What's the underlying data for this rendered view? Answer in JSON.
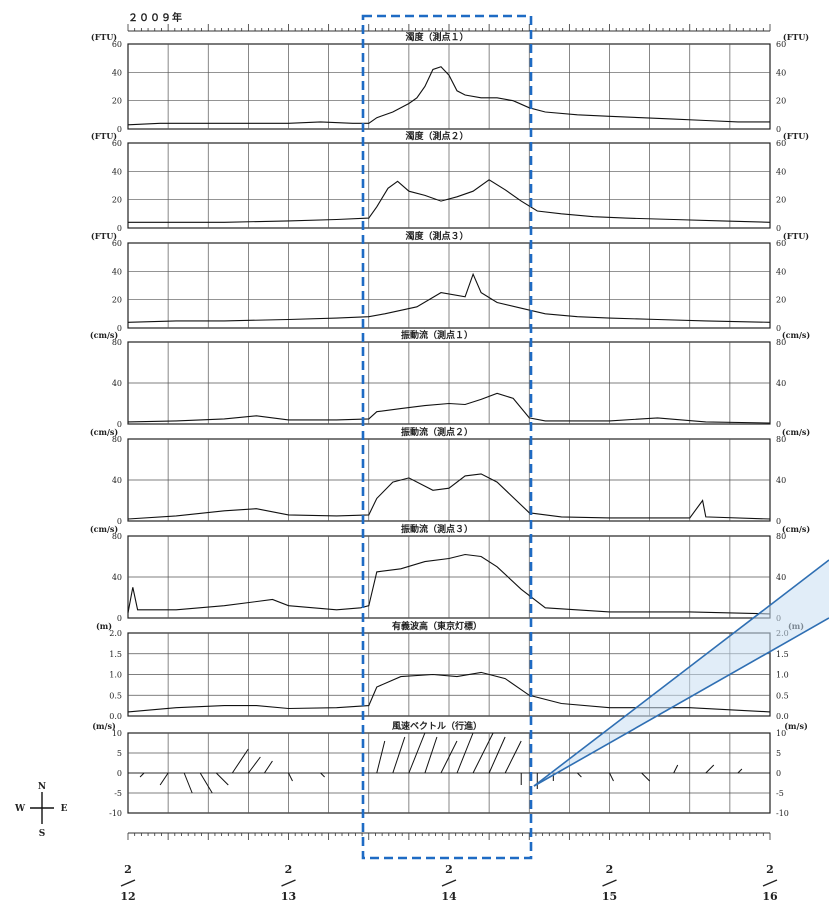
{
  "year_label": "２００９年",
  "chart_data": {
    "type": "line",
    "x_domain": [
      "2/12",
      "2/16"
    ],
    "x_labels": [
      "2/12",
      "2/13",
      "2/14",
      "2/15",
      "2/16"
    ],
    "highlight_range": [
      "2/13 12:00",
      "2/14 12:00"
    ],
    "panels": [
      {
        "title": "濁度（測点１）",
        "unit": "(FTU)",
        "ylim": [
          0,
          60
        ],
        "yticks": [
          "0",
          "20",
          "40",
          "60"
        ],
        "points": [
          [
            0,
            3
          ],
          [
            0.2,
            4
          ],
          [
            0.5,
            4
          ],
          [
            0.8,
            4
          ],
          [
            1,
            4
          ],
          [
            1.2,
            5
          ],
          [
            1.4,
            4
          ],
          [
            1.5,
            4
          ],
          [
            1.55,
            8
          ],
          [
            1.65,
            12
          ],
          [
            1.75,
            18
          ],
          [
            1.8,
            22
          ],
          [
            1.85,
            30
          ],
          [
            1.9,
            42
          ],
          [
            1.95,
            44
          ],
          [
            2.0,
            38
          ],
          [
            2.05,
            27
          ],
          [
            2.1,
            24
          ],
          [
            2.2,
            22
          ],
          [
            2.3,
            22
          ],
          [
            2.4,
            20
          ],
          [
            2.5,
            15
          ],
          [
            2.6,
            12
          ],
          [
            2.8,
            10
          ],
          [
            3,
            9
          ],
          [
            3.2,
            8
          ],
          [
            3.4,
            7
          ],
          [
            3.6,
            6
          ],
          [
            3.8,
            5
          ],
          [
            4,
            5
          ]
        ]
      },
      {
        "title": "濁度（測点２）",
        "unit": "(FTU)",
        "ylim": [
          0,
          60
        ],
        "yticks": [
          "0",
          "20",
          "40",
          "60"
        ],
        "points": [
          [
            0,
            4
          ],
          [
            0.3,
            4
          ],
          [
            0.6,
            4
          ],
          [
            1,
            5
          ],
          [
            1.3,
            6
          ],
          [
            1.5,
            7
          ],
          [
            1.55,
            15
          ],
          [
            1.62,
            28
          ],
          [
            1.68,
            33
          ],
          [
            1.75,
            26
          ],
          [
            1.85,
            23
          ],
          [
            1.95,
            19
          ],
          [
            2.05,
            22
          ],
          [
            2.15,
            26
          ],
          [
            2.25,
            34
          ],
          [
            2.35,
            27
          ],
          [
            2.45,
            19
          ],
          [
            2.55,
            12
          ],
          [
            2.7,
            10
          ],
          [
            2.9,
            8
          ],
          [
            3.1,
            7
          ],
          [
            3.4,
            6
          ],
          [
            3.7,
            5
          ],
          [
            4,
            4
          ]
        ]
      },
      {
        "title": "濁度（測点３）",
        "unit": "(FTU)",
        "ylim": [
          0,
          60
        ],
        "yticks": [
          "0",
          "20",
          "40",
          "60"
        ],
        "points": [
          [
            0,
            4
          ],
          [
            0.3,
            5
          ],
          [
            0.6,
            5
          ],
          [
            1,
            6
          ],
          [
            1.3,
            7
          ],
          [
            1.5,
            8
          ],
          [
            1.6,
            10
          ],
          [
            1.8,
            15
          ],
          [
            1.95,
            25
          ],
          [
            2.1,
            22
          ],
          [
            2.15,
            38
          ],
          [
            2.2,
            25
          ],
          [
            2.3,
            18
          ],
          [
            2.45,
            14
          ],
          [
            2.6,
            10
          ],
          [
            2.8,
            8
          ],
          [
            3.0,
            7
          ],
          [
            3.3,
            6
          ],
          [
            3.6,
            5
          ],
          [
            4,
            4
          ]
        ]
      },
      {
        "title": "振動流（測点１）",
        "unit": "(cm/s)",
        "ylim": [
          0,
          80
        ],
        "yticks": [
          "0",
          "40",
          "80"
        ],
        "points": [
          [
            0,
            2
          ],
          [
            0.3,
            3
          ],
          [
            0.6,
            5
          ],
          [
            0.8,
            8
          ],
          [
            1,
            4
          ],
          [
            1.3,
            4
          ],
          [
            1.5,
            5
          ],
          [
            1.55,
            12
          ],
          [
            1.7,
            15
          ],
          [
            1.85,
            18
          ],
          [
            2,
            20
          ],
          [
            2.1,
            19
          ],
          [
            2.2,
            24
          ],
          [
            2.3,
            30
          ],
          [
            2.4,
            25
          ],
          [
            2.5,
            6
          ],
          [
            2.6,
            3
          ],
          [
            3,
            3
          ],
          [
            3.3,
            6
          ],
          [
            3.6,
            2
          ],
          [
            4,
            1
          ]
        ]
      },
      {
        "title": "振動流（測点２）",
        "unit": "(cm/s)",
        "ylim": [
          0,
          80
        ],
        "yticks": [
          "0",
          "40",
          "80"
        ],
        "points": [
          [
            0,
            2
          ],
          [
            0.3,
            5
          ],
          [
            0.6,
            10
          ],
          [
            0.8,
            12
          ],
          [
            1,
            6
          ],
          [
            1.3,
            5
          ],
          [
            1.5,
            6
          ],
          [
            1.55,
            22
          ],
          [
            1.65,
            38
          ],
          [
            1.75,
            42
          ],
          [
            1.9,
            30
          ],
          [
            2.0,
            32
          ],
          [
            2.1,
            44
          ],
          [
            2.2,
            46
          ],
          [
            2.3,
            38
          ],
          [
            2.5,
            8
          ],
          [
            2.7,
            4
          ],
          [
            3,
            3
          ],
          [
            3.5,
            3
          ],
          [
            3.58,
            20
          ],
          [
            3.6,
            4
          ],
          [
            4,
            2
          ]
        ]
      },
      {
        "title": "振動流（測点３）",
        "unit": "(cm/s)",
        "ylim": [
          0,
          80
        ],
        "yticks": [
          "0",
          "40",
          "80"
        ],
        "points": [
          [
            0,
            5
          ],
          [
            0.03,
            30
          ],
          [
            0.06,
            8
          ],
          [
            0.3,
            8
          ],
          [
            0.6,
            12
          ],
          [
            0.9,
            18
          ],
          [
            1,
            12
          ],
          [
            1.3,
            8
          ],
          [
            1.45,
            10
          ],
          [
            1.5,
            12
          ],
          [
            1.55,
            45
          ],
          [
            1.7,
            48
          ],
          [
            1.85,
            55
          ],
          [
            2,
            58
          ],
          [
            2.1,
            62
          ],
          [
            2.2,
            60
          ],
          [
            2.3,
            50
          ],
          [
            2.45,
            28
          ],
          [
            2.6,
            10
          ],
          [
            3,
            6
          ],
          [
            3.5,
            6
          ],
          [
            4,
            4
          ]
        ]
      },
      {
        "title": "有義波高（東京灯標）",
        "unit": "(m)",
        "ylim": [
          0,
          2.0
        ],
        "yticks": [
          "0.0",
          "0.5",
          "1.0",
          "1.5",
          "2.0"
        ],
        "points": [
          [
            0,
            0.1
          ],
          [
            0.3,
            0.2
          ],
          [
            0.6,
            0.25
          ],
          [
            0.8,
            0.25
          ],
          [
            1,
            0.18
          ],
          [
            1.3,
            0.2
          ],
          [
            1.5,
            0.25
          ],
          [
            1.55,
            0.7
          ],
          [
            1.7,
            0.95
          ],
          [
            1.9,
            1.0
          ],
          [
            2.05,
            0.95
          ],
          [
            2.2,
            1.05
          ],
          [
            2.35,
            0.9
          ],
          [
            2.5,
            0.5
          ],
          [
            2.7,
            0.3
          ],
          [
            3,
            0.2
          ],
          [
            3.5,
            0.2
          ],
          [
            4,
            0.1
          ]
        ]
      },
      {
        "title": "風速ベクトル（行進）",
        "unit": "(m/s)",
        "ylim": [
          -10,
          10
        ],
        "yticks": [
          "-10",
          "-5",
          "0",
          "5",
          "10"
        ],
        "compass": {
          "n": "N",
          "s": "S",
          "w": "W",
          "e": "E"
        },
        "vectors": [
          [
            0.1,
            -1,
            -1
          ],
          [
            0.25,
            -2,
            -3
          ],
          [
            0.35,
            2,
            -5
          ],
          [
            0.45,
            3,
            -5
          ],
          [
            0.55,
            3,
            -3
          ],
          [
            0.65,
            4,
            6
          ],
          [
            0.75,
            3,
            4
          ],
          [
            0.85,
            2,
            3
          ],
          [
            1.0,
            1,
            -2
          ],
          [
            1.2,
            1,
            -1
          ],
          [
            1.55,
            2,
            8
          ],
          [
            1.65,
            3,
            9
          ],
          [
            1.75,
            4,
            10
          ],
          [
            1.85,
            3,
            9
          ],
          [
            1.95,
            4,
            8
          ],
          [
            2.05,
            4,
            10
          ],
          [
            2.15,
            5,
            10
          ],
          [
            2.25,
            4,
            9
          ],
          [
            2.35,
            4,
            8
          ],
          [
            2.45,
            0,
            -3
          ],
          [
            2.55,
            0,
            -4
          ],
          [
            2.65,
            0,
            -2
          ],
          [
            2.8,
            1,
            -1
          ],
          [
            3.0,
            1,
            -2
          ],
          [
            3.2,
            2,
            -2
          ],
          [
            3.4,
            1,
            2
          ],
          [
            3.6,
            2,
            2
          ],
          [
            3.8,
            1,
            1
          ]
        ]
      }
    ]
  }
}
